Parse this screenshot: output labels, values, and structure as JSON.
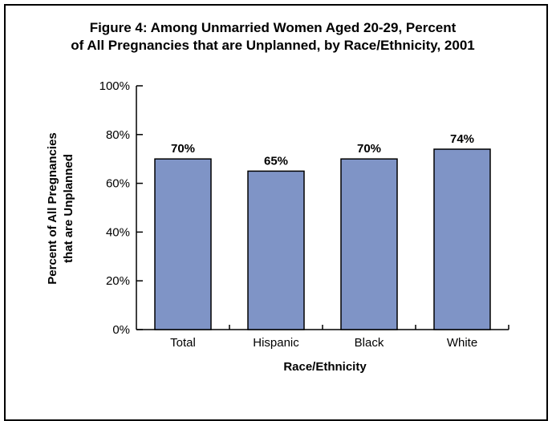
{
  "chart_data": {
    "type": "bar",
    "title_lines": [
      "Figure 4: Among Unmarried Women Aged 20-29, Percent",
      "of All Pregnancies that are Unplanned, by Race/Ethnicity, 2001"
    ],
    "xlabel": "Race/Ethnicity",
    "ylabel_lines": [
      "Percent of All Pregnancies",
      "that are Unplanned"
    ],
    "categories": [
      "Total",
      "Hispanic",
      "Black",
      "White"
    ],
    "values": [
      70,
      65,
      70,
      74
    ],
    "data_labels": [
      "70%",
      "65%",
      "70%",
      "74%"
    ],
    "ylim": [
      0,
      100
    ],
    "yticks": [
      0,
      20,
      40,
      60,
      80,
      100
    ],
    "ytick_labels": [
      "0%",
      "20%",
      "40%",
      "60%",
      "80%",
      "100%"
    ],
    "grid": false,
    "legend": "none",
    "bar_color": "#7f94c6",
    "bar_edge_color": "#000000"
  }
}
